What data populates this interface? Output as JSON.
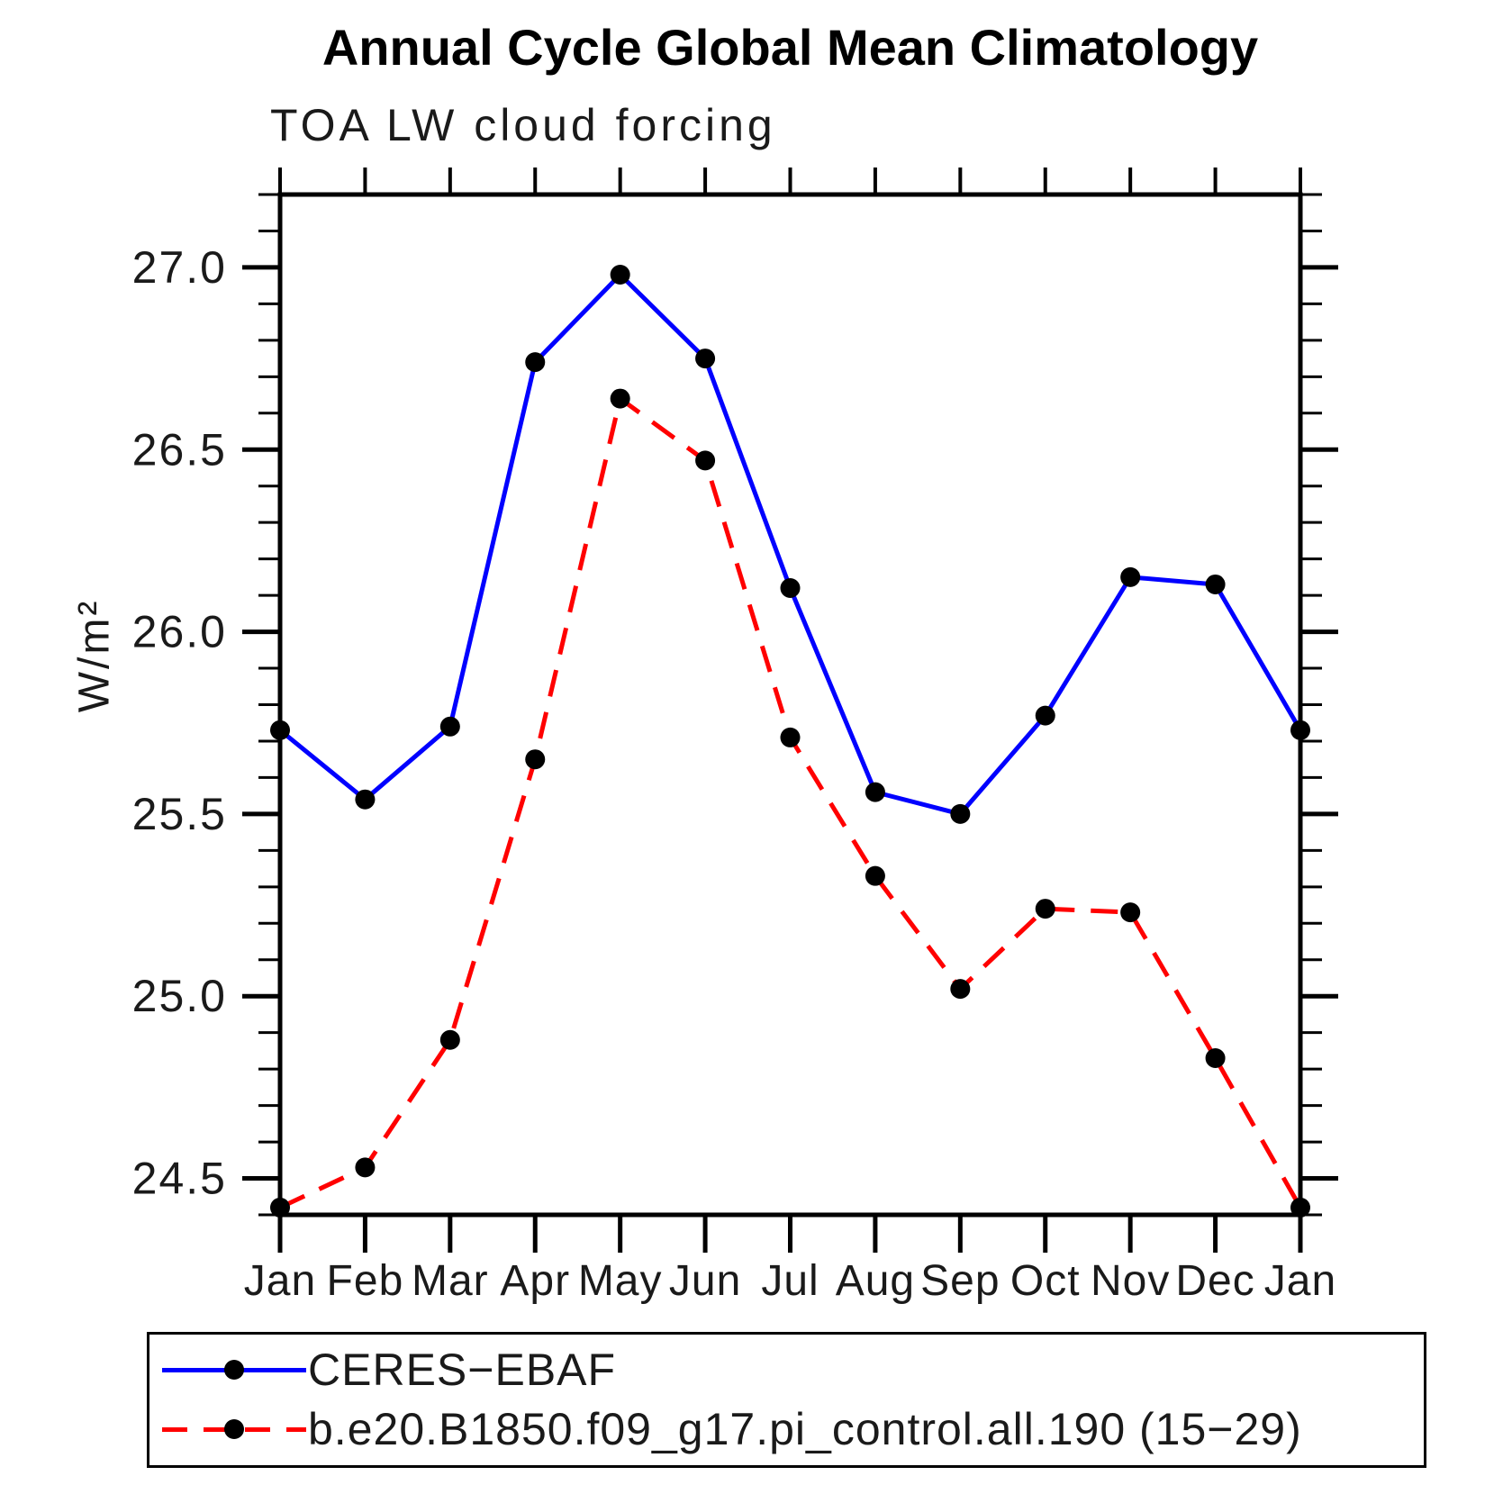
{
  "chart_data": {
    "type": "line",
    "title": "Annual Cycle Global Mean Climatology",
    "subtitle": "TOA LW cloud forcing",
    "ylabel": "W/m²",
    "xlabel": "",
    "categories": [
      "Jan",
      "Feb",
      "Mar",
      "Apr",
      "May",
      "Jun",
      "Jul",
      "Aug",
      "Sep",
      "Oct",
      "Nov",
      "Dec",
      "Jan"
    ],
    "ylim": [
      24.4,
      27.2
    ],
    "y_major_ticks": [
      24.5,
      25.0,
      25.5,
      26.0,
      26.5,
      27.0
    ],
    "y_tick_labels": [
      "24.5",
      "25.0",
      "25.5",
      "26.0",
      "26.5",
      "27.0"
    ],
    "y_minor_step": 0.1,
    "grid": false,
    "legend_position": "bottom-left-box",
    "marker": "filled-circle",
    "marker_color": "#000000",
    "axis_color": "#000000",
    "series": [
      {
        "name": "CERES−EBAF",
        "color": "#0000ff",
        "style": "solid",
        "values": [
          25.73,
          25.54,
          25.74,
          26.74,
          26.98,
          26.75,
          26.12,
          25.56,
          25.5,
          25.77,
          26.15,
          26.13,
          25.73
        ]
      },
      {
        "name": "b.e20.B1850.f09_g17.pi_control.all.190 (15−29)",
        "color": "#ff0000",
        "style": "dashed",
        "values": [
          24.42,
          24.53,
          24.88,
          25.65,
          26.64,
          26.47,
          25.71,
          25.33,
          25.02,
          25.24,
          25.23,
          24.83,
          24.42
        ]
      }
    ]
  }
}
